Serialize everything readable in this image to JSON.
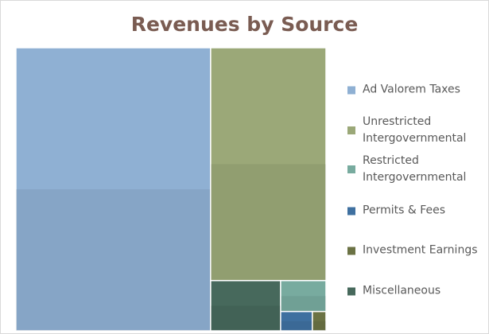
{
  "chart_data": {
    "type": "treemap",
    "title": "Revenues by Source",
    "categories": [
      "Ad Valorem Taxes",
      "Unrestricted Intergovernmental",
      "Restricted Intergovernmental",
      "Permits & Fees",
      "Investment Earnings",
      "Miscellaneous"
    ],
    "values": [
      62.8,
      30.6,
      1.6,
      0.7,
      0.3,
      4.0
    ],
    "colors": [
      "#8fb0d3",
      "#9ba878",
      "#78ab9f",
      "#3f70a0",
      "#6b7244",
      "#47695c"
    ],
    "legend": "right"
  }
}
